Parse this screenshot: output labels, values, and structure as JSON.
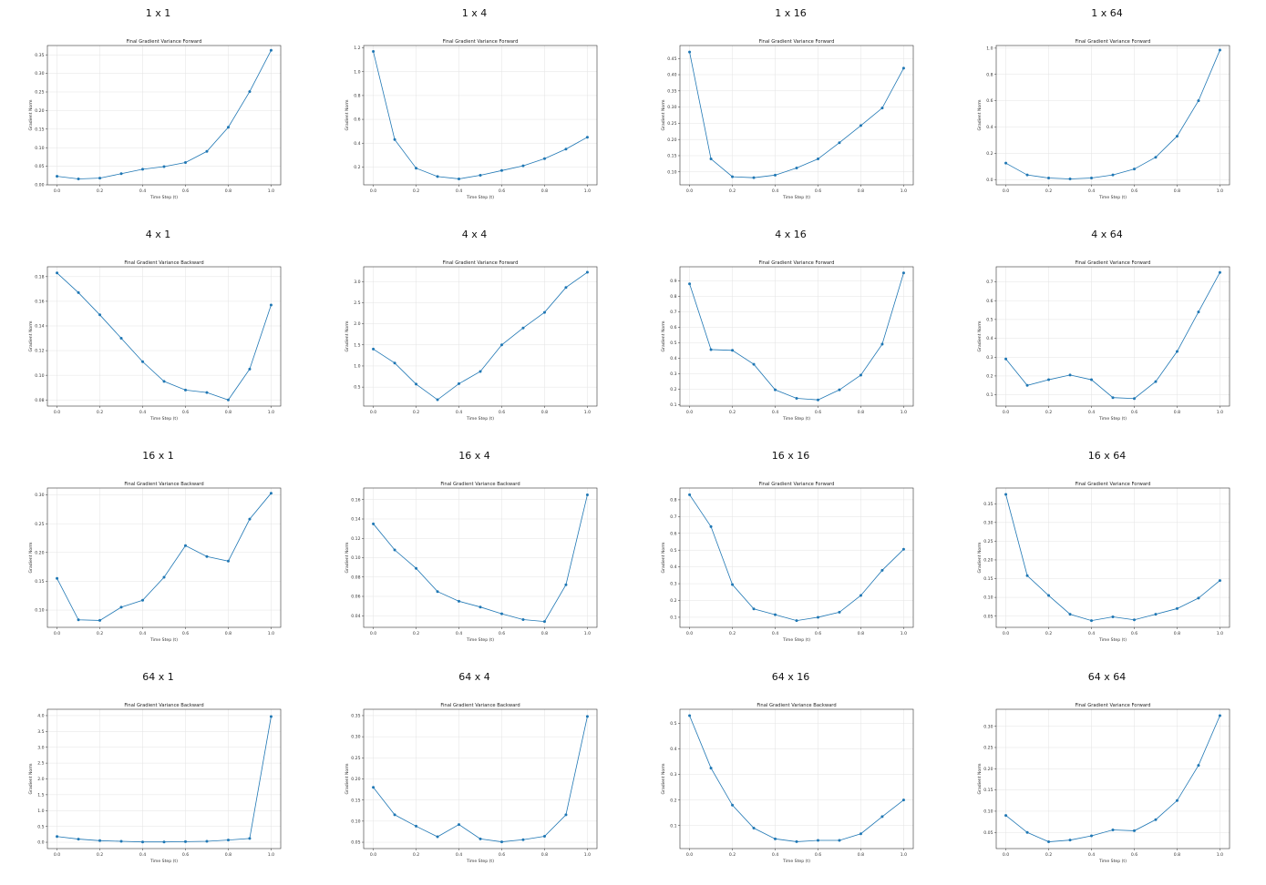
{
  "colors": {
    "series": "#1f77b4"
  },
  "chart_data": [
    {
      "heading": "1 x 1",
      "title": "Final Gradient Variance Forward",
      "type": "line",
      "xlabel": "Time Step (t)",
      "ylabel": "Gradient Norm",
      "x": [
        0,
        0.1,
        0.2,
        0.3,
        0.4,
        0.5,
        0.6,
        0.7,
        0.8,
        0.9,
        1.0
      ],
      "y": [
        0.023,
        0.016,
        0.018,
        0.03,
        0.042,
        0.049,
        0.06,
        0.09,
        0.155,
        0.251,
        0.362
      ],
      "ylim": [
        0,
        0.375
      ],
      "yticks": [
        0.0,
        0.05,
        0.1,
        0.15,
        0.2,
        0.25,
        0.3,
        0.35
      ],
      "ydec": 2
    },
    {
      "heading": "1 x 4",
      "title": "Final Gradient Variance Forward",
      "type": "line",
      "xlabel": "Time Step (t)",
      "ylabel": "Gradient Norm",
      "x": [
        0,
        0.1,
        0.2,
        0.3,
        0.4,
        0.5,
        0.6,
        0.7,
        0.8,
        0.9,
        1.0
      ],
      "y": [
        1.17,
        0.43,
        0.19,
        0.12,
        0.1,
        0.13,
        0.17,
        0.21,
        0.27,
        0.35,
        0.45
      ],
      "ylim": [
        0.05,
        1.22
      ],
      "yticks": [
        0.2,
        0.4,
        0.6,
        0.8,
        1.0,
        1.2
      ],
      "ydec": 1
    },
    {
      "heading": "1 x 16",
      "title": "Final Gradient Variance Forward",
      "type": "line",
      "xlabel": "Time Step (t)",
      "ylabel": "Gradient Norm",
      "x": [
        0,
        0.1,
        0.2,
        0.3,
        0.4,
        0.5,
        0.6,
        0.7,
        0.8,
        0.9,
        1.0
      ],
      "y": [
        0.47,
        0.14,
        0.085,
        0.082,
        0.09,
        0.112,
        0.14,
        0.19,
        0.243,
        0.297,
        0.42
      ],
      "ylim": [
        0.06,
        0.49
      ],
      "yticks": [
        0.1,
        0.15,
        0.2,
        0.25,
        0.3,
        0.35,
        0.4,
        0.45
      ],
      "ydec": 2
    },
    {
      "heading": "1 x 64",
      "title": "Final Gradient Variance Forward",
      "type": "line",
      "xlabel": "Time Step (t)",
      "ylabel": "Gradient Norm",
      "x": [
        0,
        0.1,
        0.2,
        0.3,
        0.4,
        0.5,
        0.6,
        0.7,
        0.8,
        0.9,
        1.0
      ],
      "y": [
        0.125,
        0.035,
        0.012,
        0.005,
        0.012,
        0.035,
        0.08,
        0.17,
        0.33,
        0.6,
        0.985
      ],
      "ylim": [
        -0.04,
        1.02
      ],
      "yticks": [
        0.0,
        0.2,
        0.4,
        0.6,
        0.8,
        1.0
      ],
      "ydec": 1
    },
    {
      "heading": "4 x 1",
      "title": "Final Gradient Variance Backward",
      "type": "line",
      "xlabel": "Time Step (t)",
      "ylabel": "Gradient Norm",
      "x": [
        0,
        0.1,
        0.2,
        0.3,
        0.4,
        0.5,
        0.6,
        0.7,
        0.8,
        0.9,
        1.0
      ],
      "y": [
        0.183,
        0.167,
        0.149,
        0.13,
        0.111,
        0.095,
        0.088,
        0.086,
        0.08,
        0.105,
        0.157
      ],
      "ylim": [
        0.075,
        0.188
      ],
      "yticks": [
        0.08,
        0.1,
        0.12,
        0.14,
        0.16,
        0.18
      ],
      "ydec": 2
    },
    {
      "heading": "4 x 4",
      "title": "Final Gradient Variance Forward",
      "type": "line",
      "xlabel": "Time Step (t)",
      "ylabel": "Gradient Norm",
      "x": [
        0,
        0.1,
        0.2,
        0.3,
        0.4,
        0.5,
        0.6,
        0.7,
        0.8,
        0.9,
        1.0
      ],
      "y": [
        1.4,
        1.07,
        0.57,
        0.2,
        0.58,
        0.87,
        1.5,
        1.9,
        2.27,
        2.86,
        3.22
      ],
      "ylim": [
        0.05,
        3.35
      ],
      "yticks": [
        0.5,
        1.0,
        1.5,
        2.0,
        2.5,
        3.0
      ],
      "ydec": 1
    },
    {
      "heading": "4 x 16",
      "title": "Final Gradient Variance Forward",
      "type": "line",
      "xlabel": "Time Step (t)",
      "ylabel": "Gradient Norm",
      "x": [
        0,
        0.1,
        0.2,
        0.3,
        0.4,
        0.5,
        0.6,
        0.7,
        0.8,
        0.9,
        1.0
      ],
      "y": [
        0.88,
        0.455,
        0.45,
        0.36,
        0.195,
        0.14,
        0.13,
        0.195,
        0.29,
        0.49,
        0.95
      ],
      "ylim": [
        0.09,
        0.99
      ],
      "yticks": [
        0.1,
        0.2,
        0.3,
        0.4,
        0.5,
        0.6,
        0.7,
        0.8,
        0.9
      ],
      "ydec": 1
    },
    {
      "heading": "4 x 64",
      "title": "Final Gradient Variance Forward",
      "type": "line",
      "xlabel": "Time Step (t)",
      "ylabel": "Gradient Norm",
      "x": [
        0,
        0.1,
        0.2,
        0.3,
        0.4,
        0.5,
        0.6,
        0.7,
        0.8,
        0.9,
        1.0
      ],
      "y": [
        0.29,
        0.15,
        0.18,
        0.205,
        0.18,
        0.085,
        0.08,
        0.17,
        0.33,
        0.54,
        0.75
      ],
      "ylim": [
        0.04,
        0.78
      ],
      "yticks": [
        0.1,
        0.2,
        0.3,
        0.4,
        0.5,
        0.6,
        0.7
      ],
      "ydec": 1
    },
    {
      "heading": "16 x 1",
      "title": "Final Gradient Variance Backward",
      "type": "line",
      "xlabel": "Time Step (t)",
      "ylabel": "Gradient Norm",
      "x": [
        0,
        0.1,
        0.2,
        0.3,
        0.4,
        0.5,
        0.6,
        0.7,
        0.8,
        0.9,
        1.0
      ],
      "y": [
        0.155,
        0.083,
        0.082,
        0.105,
        0.117,
        0.157,
        0.212,
        0.193,
        0.185,
        0.258,
        0.303
      ],
      "ylim": [
        0.07,
        0.312
      ],
      "yticks": [
        0.1,
        0.15,
        0.2,
        0.25,
        0.3
      ],
      "ydec": 2
    },
    {
      "heading": "16 x 4",
      "title": "Final Gradient Variance Backward",
      "type": "line",
      "xlabel": "Time Step (t)",
      "ylabel": "Gradient Norm",
      "x": [
        0,
        0.1,
        0.2,
        0.3,
        0.4,
        0.5,
        0.6,
        0.7,
        0.8,
        0.9,
        1.0
      ],
      "y": [
        0.135,
        0.108,
        0.089,
        0.065,
        0.055,
        0.049,
        0.042,
        0.036,
        0.034,
        0.072,
        0.165
      ],
      "ylim": [
        0.028,
        0.172
      ],
      "yticks": [
        0.04,
        0.06,
        0.08,
        0.1,
        0.12,
        0.14,
        0.16
      ],
      "ydec": 2
    },
    {
      "heading": "16 x 16",
      "title": "Final Gradient Variance Forward",
      "type": "line",
      "xlabel": "Time Step (t)",
      "ylabel": "Gradient Norm",
      "x": [
        0,
        0.1,
        0.2,
        0.3,
        0.4,
        0.5,
        0.6,
        0.7,
        0.8,
        0.9,
        1.0
      ],
      "y": [
        0.83,
        0.64,
        0.295,
        0.15,
        0.115,
        0.08,
        0.1,
        0.13,
        0.23,
        0.38,
        0.505
      ],
      "ylim": [
        0.04,
        0.87
      ],
      "yticks": [
        0.1,
        0.2,
        0.3,
        0.4,
        0.5,
        0.6,
        0.7,
        0.8
      ],
      "ydec": 1
    },
    {
      "heading": "16 x 64",
      "title": "Final Gradient Variance Forward",
      "type": "line",
      "xlabel": "Time Step (t)",
      "ylabel": "Gradient Norm",
      "x": [
        0,
        0.1,
        0.2,
        0.3,
        0.4,
        0.5,
        0.6,
        0.7,
        0.8,
        0.9,
        1.0
      ],
      "y": [
        0.375,
        0.158,
        0.105,
        0.055,
        0.038,
        0.048,
        0.04,
        0.055,
        0.07,
        0.098,
        0.145
      ],
      "ylim": [
        0.02,
        0.392
      ],
      "yticks": [
        0.05,
        0.1,
        0.15,
        0.2,
        0.25,
        0.3,
        0.35
      ],
      "ydec": 2
    },
    {
      "heading": "64 x 1",
      "title": "Final Gradient Variance Backward",
      "type": "line",
      "xlabel": "Time Step (t)",
      "ylabel": "Gradient Norm",
      "x": [
        0,
        0.1,
        0.2,
        0.3,
        0.4,
        0.5,
        0.6,
        0.7,
        0.8,
        0.9,
        1.0
      ],
      "y": [
        0.18,
        0.1,
        0.05,
        0.03,
        0.01,
        0.01,
        0.02,
        0.03,
        0.07,
        0.12,
        3.97
      ],
      "ylim": [
        -0.2,
        4.2
      ],
      "yticks": [
        0.0,
        0.5,
        1.0,
        1.5,
        2.0,
        2.5,
        3.0,
        3.5,
        4.0
      ],
      "ydec": 1
    },
    {
      "heading": "64 x 4",
      "title": "Final Gradient Variance Backward",
      "type": "line",
      "xlabel": "Time Step (t)",
      "ylabel": "Gradient Norm",
      "x": [
        0,
        0.1,
        0.2,
        0.3,
        0.4,
        0.5,
        0.6,
        0.7,
        0.8,
        0.9,
        1.0
      ],
      "y": [
        0.18,
        0.115,
        0.088,
        0.063,
        0.092,
        0.058,
        0.051,
        0.056,
        0.064,
        0.115,
        0.348
      ],
      "ylim": [
        0.035,
        0.365
      ],
      "yticks": [
        0.05,
        0.1,
        0.15,
        0.2,
        0.25,
        0.3,
        0.35
      ],
      "ydec": 2
    },
    {
      "heading": "64 x 16",
      "title": "Final Gradient Variance Backward",
      "type": "line",
      "xlabel": "Time Step (t)",
      "ylabel": "Gradient Norm",
      "x": [
        0,
        0.1,
        0.2,
        0.3,
        0.4,
        0.5,
        0.6,
        0.7,
        0.8,
        0.9,
        1.0
      ],
      "y": [
        0.53,
        0.325,
        0.18,
        0.09,
        0.048,
        0.037,
        0.042,
        0.042,
        0.068,
        0.135,
        0.2
      ],
      "ylim": [
        0.01,
        0.555
      ],
      "yticks": [
        0.1,
        0.2,
        0.3,
        0.4,
        0.5
      ],
      "ydec": 1
    },
    {
      "heading": "64 x 64",
      "title": "Final Gradient Variance Forward",
      "type": "line",
      "xlabel": "Time Step (t)",
      "ylabel": "Gradient Norm",
      "x": [
        0,
        0.1,
        0.2,
        0.3,
        0.4,
        0.5,
        0.6,
        0.7,
        0.8,
        0.9,
        1.0
      ],
      "y": [
        0.09,
        0.05,
        0.028,
        0.032,
        0.042,
        0.056,
        0.054,
        0.08,
        0.125,
        0.208,
        0.325
      ],
      "ylim": [
        0.012,
        0.34
      ],
      "yticks": [
        0.05,
        0.1,
        0.15,
        0.2,
        0.25,
        0.3
      ],
      "ydec": 2
    }
  ]
}
